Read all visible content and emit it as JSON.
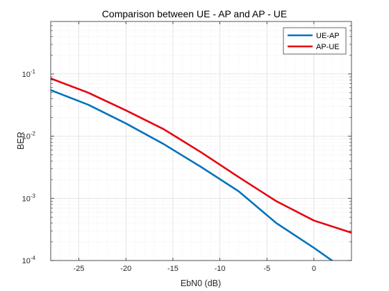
{
  "chart_data": {
    "type": "line",
    "title": "Comparison between UE - AP and AP - UE",
    "xlabel": "EbN0 (dB)",
    "ylabel": "BER",
    "xlim": [
      -28,
      4
    ],
    "ylim": [
      0.0001,
      0.7
    ],
    "yscale": "log",
    "grid": true,
    "minor_grid": true,
    "legend_position": "top-right",
    "x_ticks": [
      -25,
      -20,
      -15,
      -10,
      -5,
      0
    ],
    "y_ticks": [
      {
        "value": 0.0001,
        "base": "10",
        "exp": "-4"
      },
      {
        "value": 0.001,
        "base": "10",
        "exp": "-3"
      },
      {
        "value": 0.01,
        "base": "10",
        "exp": "-2"
      },
      {
        "value": 0.1,
        "base": "10",
        "exp": "-1"
      }
    ],
    "series": [
      {
        "name": "UE-AP",
        "color": "#0072BD",
        "x": [
          -28,
          -24,
          -20,
          -16,
          -12,
          -8,
          -4,
          0,
          4
        ],
        "y": [
          0.055,
          0.032,
          0.016,
          0.0075,
          0.0032,
          0.0013,
          0.0004,
          0.00016,
          6e-05
        ]
      },
      {
        "name": "AP-UE",
        "color": "#E6000F",
        "x": [
          -28,
          -24,
          -20,
          -16,
          -12,
          -8,
          -4,
          0,
          4
        ],
        "y": [
          0.085,
          0.05,
          0.026,
          0.013,
          0.0055,
          0.0022,
          0.0009,
          0.00044,
          0.00028
        ]
      }
    ]
  }
}
